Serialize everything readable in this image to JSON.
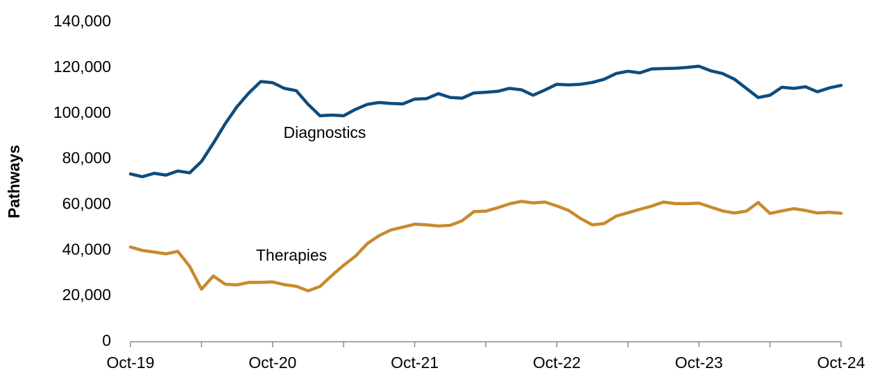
{
  "chart_data": {
    "type": "line",
    "y_label": "Pathways",
    "categories": [
      "Oct-19",
      null,
      null,
      null,
      null,
      null,
      null,
      null,
      null,
      null,
      null,
      null,
      "Oct-20",
      null,
      null,
      null,
      null,
      null,
      null,
      null,
      null,
      null,
      null,
      null,
      "Oct-21",
      null,
      null,
      null,
      null,
      null,
      null,
      null,
      null,
      null,
      null,
      null,
      "Oct-22",
      null,
      null,
      null,
      null,
      null,
      null,
      null,
      null,
      null,
      null,
      null,
      "Oct-23",
      null,
      null,
      null,
      null,
      null,
      null,
      null,
      null,
      null,
      null,
      null,
      "Oct-24"
    ],
    "series": [
      {
        "name": "Diagnostics",
        "color": "#0e4c7d",
        "values": [
          73500,
          72300,
          73800,
          73000,
          74800,
          74000,
          79000,
          87000,
          95500,
          103000,
          109000,
          114000,
          113500,
          111000,
          110000,
          104000,
          99000,
          99300,
          99000,
          101800,
          104000,
          104800,
          104400,
          104200,
          106300,
          106500,
          108700,
          107000,
          106700,
          109000,
          109300,
          109700,
          111000,
          110400,
          108000,
          110300,
          112800,
          112500,
          112800,
          113600,
          115000,
          117500,
          118500,
          117800,
          119500,
          119700,
          119800,
          120200,
          120700,
          118700,
          117500,
          115000,
          111000,
          107000,
          108000,
          111500,
          111000,
          111700,
          109500,
          111200,
          112300
        ]
      },
      {
        "name": "Therapies",
        "color": "#c98a2e",
        "values": [
          41500,
          40000,
          39300,
          38500,
          39600,
          33000,
          23000,
          28800,
          25200,
          24900,
          26000,
          26000,
          26200,
          25000,
          24300,
          22300,
          24200,
          29000,
          33500,
          37500,
          43000,
          46500,
          49000,
          50200,
          51500,
          51200,
          50700,
          51000,
          53000,
          57000,
          57200,
          58700,
          60400,
          61500,
          60800,
          61200,
          59500,
          57500,
          54000,
          51200,
          51800,
          55000,
          56500,
          58000,
          59400,
          61200,
          60500,
          60500,
          60700,
          59000,
          57300,
          56400,
          57200,
          61000,
          56200,
          57300,
          58300,
          57500,
          56400,
          56700,
          56300
        ]
      }
    ],
    "ylim": [
      0,
      140000
    ],
    "yticks": [
      0,
      {
        "value": 20000,
        "label": "20,000"
      },
      {
        "value": 40000,
        "label": "40,000"
      },
      {
        "value": 60000,
        "label": "60,000"
      },
      {
        "value": 80000,
        "label": "80,000"
      },
      {
        "value": 100000,
        "label": "100,000"
      },
      {
        "value": 120000,
        "label": "120,000"
      },
      {
        "value": 140000,
        "label": "140,000"
      }
    ],
    "grid": false
  }
}
